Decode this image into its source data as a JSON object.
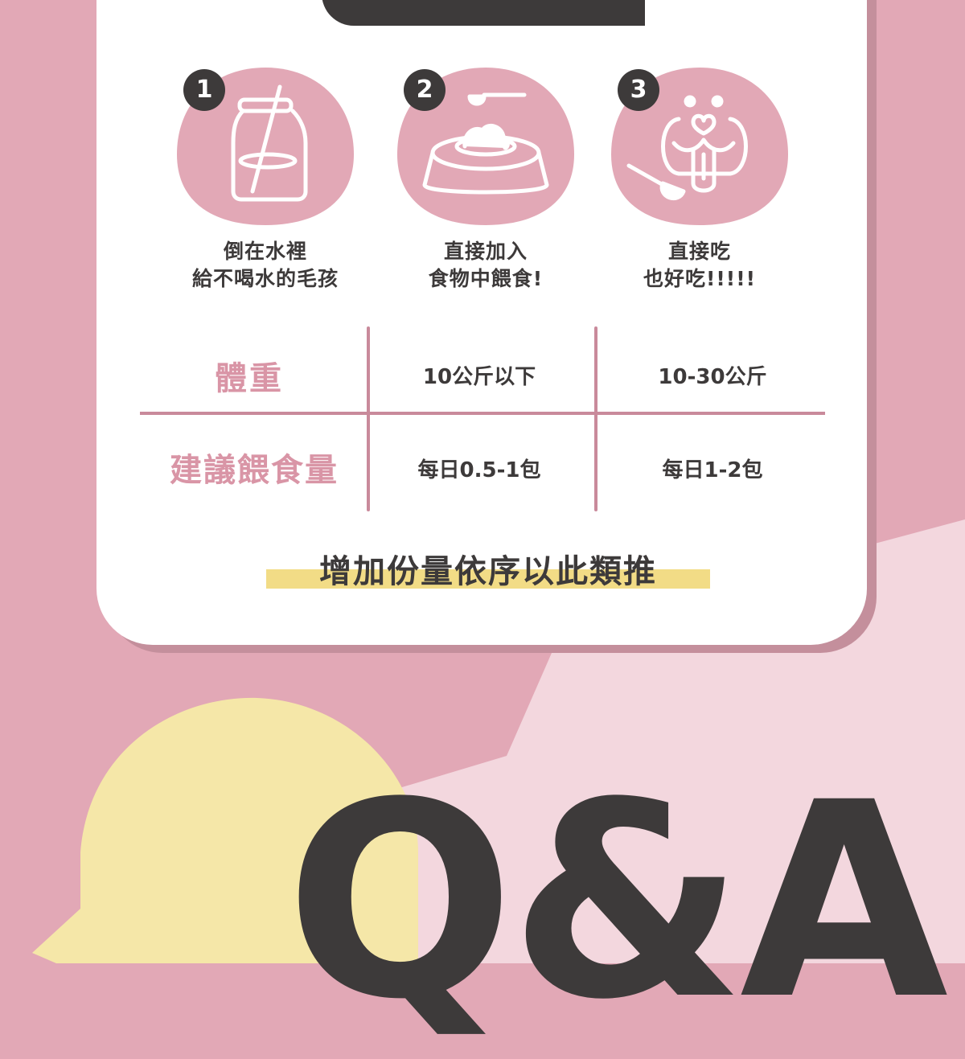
{
  "colors": {
    "background_pink": "#e2a8b6",
    "background_light_pink": "#f3d7de",
    "card_white": "#ffffff",
    "dark": "#3d3a3a",
    "accent_pink": "#d995a6",
    "grid_pink": "#c98a9b",
    "highlight_yellow": "#f2dc86",
    "bubble_yellow": "#f5e7a8"
  },
  "header": {
    "title": ""
  },
  "steps": [
    {
      "number": "1",
      "icon": "jar-straw-icon",
      "line1": "倒在水裡",
      "line2": "給不喝水的毛孩"
    },
    {
      "number": "2",
      "icon": "pet-bowl-scoop-icon",
      "line1": "直接加入",
      "line2": "食物中餵食!"
    },
    {
      "number": "3",
      "icon": "dog-face-scoop-icon",
      "line1": "直接吃",
      "line2": "也好吃!!!!!"
    }
  ],
  "table": {
    "rows": [
      {
        "label": "體重",
        "col1": "10公斤以下",
        "col2": "10-30公斤"
      },
      {
        "label": "建議餵食量",
        "col1": "每日0.5-1包",
        "col2": "每日1-2包"
      }
    ]
  },
  "note": "增加份量依序以此類推",
  "qa_title": "Q&A"
}
